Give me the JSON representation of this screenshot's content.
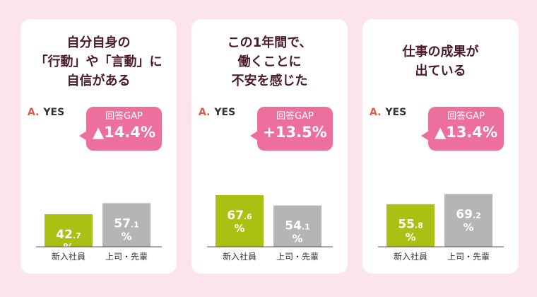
{
  "unit": "%",
  "colors": {
    "background": "#fbe4ea",
    "card": "#ffffff",
    "title": "#4a1b2b",
    "bubble": "#ec6f9d",
    "answer_mark": "#e4574d",
    "bar_new": "#a9c112",
    "bar_senior": "#b5b5b5"
  },
  "chart_data": [
    {
      "type": "bar",
      "title": "自分自身の\n「行動」や「言動」に\n自信がある",
      "answer_mark": "A.",
      "answer_text": "YES",
      "gap_label": "回答GAP",
      "gap_value": "▲14.4%",
      "categories": [
        "新入社員",
        "上司・先輩"
      ],
      "values": [
        42.7,
        57.1
      ]
    },
    {
      "type": "bar",
      "title": "この1年間で、\n働くことに\n不安を感じた",
      "answer_mark": "A.",
      "answer_text": "YES",
      "gap_label": "回答GAP",
      "gap_value": "+13.5%",
      "categories": [
        "新入社員",
        "上司・先輩"
      ],
      "values": [
        67.6,
        54.1
      ]
    },
    {
      "type": "bar",
      "title": "仕事の成果が\n出ている",
      "answer_mark": "A.",
      "answer_text": "YES",
      "gap_label": "回答GAP",
      "gap_value": "▲13.4%",
      "categories": [
        "新入社員",
        "上司・先輩"
      ],
      "values": [
        55.8,
        69.2
      ]
    }
  ]
}
